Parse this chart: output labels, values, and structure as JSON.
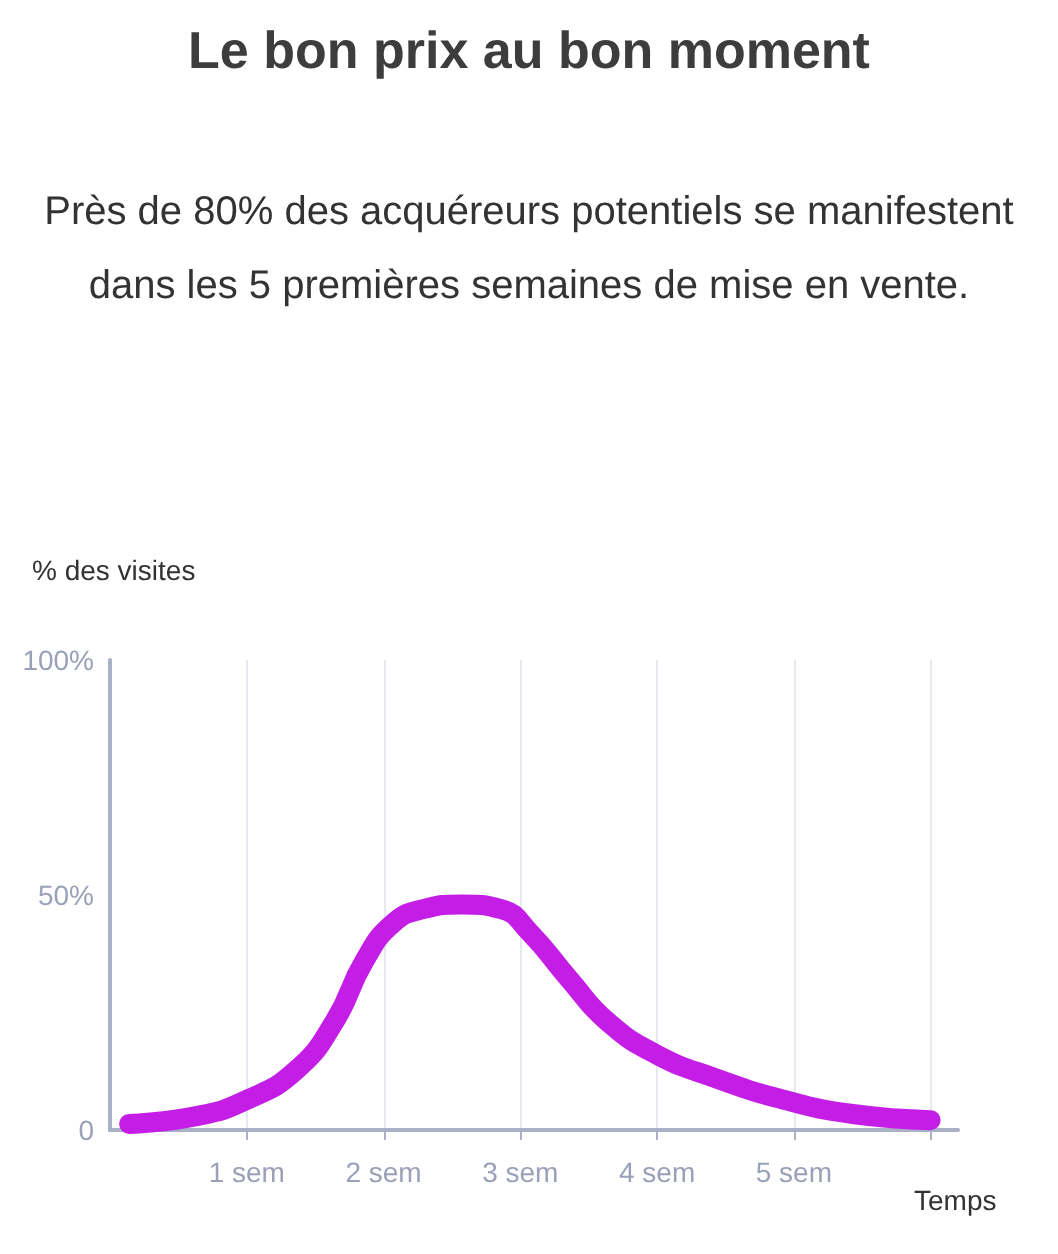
{
  "chart_data": {
    "type": "line",
    "title": "Le bon prix au bon moment",
    "subtitle": "Près de 80% des acquéreurs potentiels se manifestent dans les 5 premières semaines de mise en vente.",
    "xlabel": "Temps",
    "ylabel": "% des visites",
    "x": [
      0.14,
      0.64,
      1.0,
      1.36,
      1.64,
      1.86,
      2.07,
      2.29,
      2.57,
      2.86,
      3.07,
      3.36,
      3.64,
      4.0,
      4.43,
      4.93,
      5.43,
      6.0
    ],
    "series": [
      {
        "color": "#c41ee6",
        "values": [
          1.3,
          3,
          6.4,
          12.7,
          23,
          36,
          44,
          47,
          48,
          47,
          42,
          32,
          23,
          16,
          11,
          6.4,
          3.4,
          2.1
        ]
      }
    ],
    "xlim": [
      0,
      6.2
    ],
    "xticks": [
      {
        "value": 1,
        "label": "1 sem"
      },
      {
        "value": 2,
        "label": "2 sem"
      },
      {
        "value": 3,
        "label": "3 sem"
      },
      {
        "value": 4,
        "label": "4 sem"
      },
      {
        "value": 5,
        "label": "5 sem"
      },
      {
        "value": 6,
        "label": null
      }
    ],
    "ylim": [
      0,
      100
    ],
    "yticks": [
      0,
      {
        "value": 50,
        "label": "50%"
      },
      {
        "value": 100,
        "label": "100%"
      }
    ],
    "grid": "x",
    "line_style": "solid"
  }
}
